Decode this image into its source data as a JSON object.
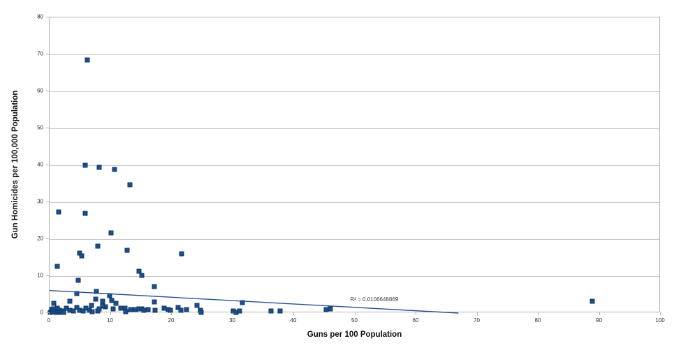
{
  "chart_data": {
    "type": "scatter",
    "title": "",
    "xlabel": "Guns per 100 Population",
    "ylabel": "Gun Homicides per 100,000 Population",
    "xlim": [
      0,
      100
    ],
    "ylim": [
      0,
      80
    ],
    "x_ticks": [
      0,
      10,
      20,
      30,
      40,
      50,
      60,
      70,
      80,
      90,
      100
    ],
    "y_ticks": [
      0,
      10,
      20,
      30,
      40,
      50,
      60,
      70,
      80
    ],
    "grid": "horizontal-only",
    "legend": "none",
    "marker": "square",
    "colors": {
      "point_fill": "#1d4e87",
      "point_border": "#0f3a6b",
      "trendline": "#27508f",
      "gridline": "#c9c9c9",
      "axis_border": "#b2b2b2"
    },
    "trendline": {
      "x1": 0,
      "y1": 6.1,
      "x2": 66.9,
      "y2": 0,
      "label": "R² = 0.0106648869",
      "label_x": 49.2,
      "label_y": 4.6
    },
    "points": [
      [
        6.2,
        68.4
      ],
      [
        5.8,
        40.0
      ],
      [
        8.1,
        39.4
      ],
      [
        10.6,
        38.9
      ],
      [
        13.1,
        34.8
      ],
      [
        1.5,
        27.3
      ],
      [
        5.8,
        27.0
      ],
      [
        10.0,
        21.7
      ],
      [
        7.9,
        18.1
      ],
      [
        12.7,
        17.0
      ],
      [
        4.9,
        16.3
      ],
      [
        5.3,
        15.5
      ],
      [
        21.6,
        16.0
      ],
      [
        1.3,
        12.7
      ],
      [
        14.6,
        11.3
      ],
      [
        15.1,
        10.1
      ],
      [
        4.7,
        8.8
      ],
      [
        17.1,
        7.1
      ],
      [
        7.7,
        5.8
      ],
      [
        4.4,
        5.2
      ],
      [
        9.8,
        4.7
      ],
      [
        7.5,
        3.7
      ],
      [
        3.3,
        3.3
      ],
      [
        10.2,
        3.4
      ],
      [
        8.7,
        3.2
      ],
      [
        17.1,
        3.1
      ],
      [
        31.5,
        2.9
      ],
      [
        88.8,
        3.2
      ],
      [
        0.7,
        2.7
      ],
      [
        10.8,
        2.6
      ],
      [
        6.9,
        2.1
      ],
      [
        24.1,
        2.0
      ],
      [
        9.1,
        1.7
      ],
      [
        8.7,
        1.9
      ],
      [
        4.4,
        1.6
      ],
      [
        21.0,
        1.6
      ],
      [
        0.1,
        0.2
      ],
      [
        0.3,
        0.9
      ],
      [
        0.5,
        0.3
      ],
      [
        0.6,
        1.2
      ],
      [
        0.8,
        0.6
      ],
      [
        1.0,
        0.1
      ],
      [
        1.2,
        1.3
      ],
      [
        1.4,
        0.4
      ],
      [
        1.6,
        0.8
      ],
      [
        1.8,
        0.2
      ],
      [
        2.0,
        0.6
      ],
      [
        2.3,
        0.1
      ],
      [
        2.7,
        1.3
      ],
      [
        3.3,
        0.8
      ],
      [
        3.9,
        0.5
      ],
      [
        4.9,
        0.8
      ],
      [
        5.5,
        0.5
      ],
      [
        5.9,
        1.3
      ],
      [
        6.5,
        0.8
      ],
      [
        7.0,
        0.3
      ],
      [
        7.9,
        0.5
      ],
      [
        8.1,
        1.1
      ],
      [
        10.4,
        1.1
      ],
      [
        11.7,
        1.3
      ],
      [
        12.3,
        1.4
      ],
      [
        12.5,
        0.4
      ],
      [
        13.3,
        1.0
      ],
      [
        14.0,
        0.9
      ],
      [
        14.6,
        1.2
      ],
      [
        15.1,
        1.2
      ],
      [
        15.4,
        0.8
      ],
      [
        16.1,
        1.0
      ],
      [
        17.2,
        0.8
      ],
      [
        18.7,
        1.3
      ],
      [
        19.4,
        1.0
      ],
      [
        19.8,
        0.8
      ],
      [
        21.5,
        0.8
      ],
      [
        22.4,
        0.9
      ],
      [
        24.7,
        0.7
      ],
      [
        24.8,
        0.2
      ],
      [
        30.0,
        0.5
      ],
      [
        30.5,
        0.2
      ],
      [
        31.1,
        0.6
      ],
      [
        36.2,
        0.5
      ],
      [
        37.7,
        0.5
      ],
      [
        45.3,
        0.9
      ],
      [
        45.9,
        1.1
      ]
    ]
  }
}
